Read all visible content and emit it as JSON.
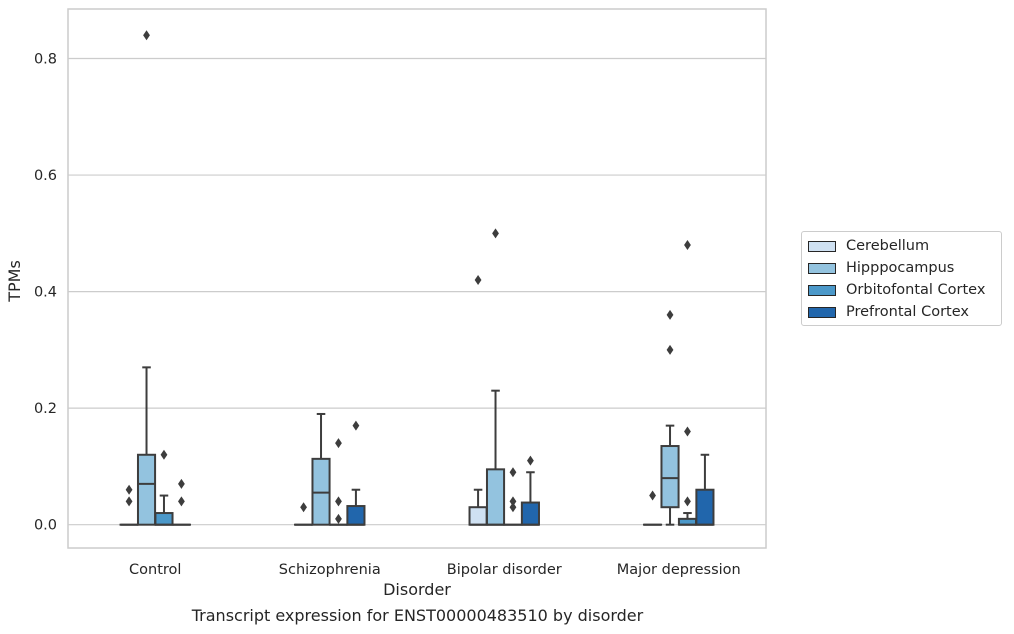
{
  "caption": "Transcript expression for ENST00000483510 by disorder",
  "chart_data": {
    "type": "box",
    "xlabel": "Disorder",
    "ylabel": "TPMs",
    "ylim": [
      -0.04,
      0.885
    ],
    "yticks": [
      0.0,
      0.2,
      0.4,
      0.6,
      0.8
    ],
    "ytick_labels": [
      "0.0",
      "0.2",
      "0.4",
      "0.6",
      "0.8"
    ],
    "grid": "horizontal",
    "legend_placement": "right, outside plot",
    "categories": [
      "Control",
      "Schizophrenia",
      "Bipolar disorder",
      "Major depression"
    ],
    "series": [
      {
        "name": "Cerebellum",
        "color": "#cfe1f2",
        "boxes": [
          {
            "q1": 0,
            "median": 0,
            "q3": 0,
            "whislo": 0,
            "whishi": 0,
            "fliers": [
              0.04,
              0.06
            ]
          },
          {
            "q1": 0,
            "median": 0,
            "q3": 0,
            "whislo": 0,
            "whishi": 0,
            "fliers": [
              0.03
            ]
          },
          {
            "q1": 0,
            "median": 0,
            "q3": 0.03,
            "whislo": 0,
            "whishi": 0.06,
            "fliers": [
              0.42
            ]
          },
          {
            "q1": 0,
            "median": 0,
            "q3": 0,
            "whislo": 0,
            "whishi": 0,
            "fliers": [
              0.05
            ]
          }
        ]
      },
      {
        "name": "Hipppocampus",
        "color": "#93c3df",
        "boxes": [
          {
            "q1": 0,
            "median": 0.07,
            "q3": 0.12,
            "whislo": 0,
            "whishi": 0.27,
            "fliers": [
              0.84
            ]
          },
          {
            "q1": 0,
            "median": 0.055,
            "q3": 0.113,
            "whislo": 0,
            "whishi": 0.19,
            "fliers": []
          },
          {
            "q1": 0,
            "median": 0,
            "q3": 0.095,
            "whislo": 0,
            "whishi": 0.23,
            "fliers": [
              0.5
            ]
          },
          {
            "q1": 0.03,
            "median": 0.08,
            "q3": 0.135,
            "whislo": 0,
            "whishi": 0.17,
            "fliers": [
              0.3,
              0.36
            ]
          }
        ]
      },
      {
        "name": "Orbitofontal Cortex",
        "color": "#4b98c9",
        "boxes": [
          {
            "q1": 0,
            "median": 0,
            "q3": 0.02,
            "whislo": 0,
            "whishi": 0.05,
            "fliers": [
              0.12
            ]
          },
          {
            "q1": 0,
            "median": 0,
            "q3": 0,
            "whislo": 0,
            "whishi": 0,
            "fliers": [
              0.01,
              0.04,
              0.14
            ]
          },
          {
            "q1": 0,
            "median": 0,
            "q3": 0,
            "whislo": 0,
            "whishi": 0,
            "fliers": [
              0.03,
              0.04,
              0.09
            ]
          },
          {
            "q1": 0,
            "median": 0,
            "q3": 0.01,
            "whislo": 0,
            "whishi": 0.02,
            "fliers": [
              0.04,
              0.16,
              0.48
            ]
          }
        ]
      },
      {
        "name": "Prefrontal Cortex",
        "color": "#2166ac",
        "boxes": [
          {
            "q1": 0,
            "median": 0,
            "q3": 0,
            "whislo": 0,
            "whishi": 0,
            "fliers": [
              0.04,
              0.07
            ]
          },
          {
            "q1": 0,
            "median": 0,
            "q3": 0.032,
            "whislo": 0,
            "whishi": 0.06,
            "fliers": [
              0.17
            ]
          },
          {
            "q1": 0,
            "median": 0,
            "q3": 0.038,
            "whislo": 0,
            "whishi": 0.09,
            "fliers": [
              0.11
            ]
          },
          {
            "q1": 0,
            "median": 0,
            "q3": 0.06,
            "whislo": 0,
            "whishi": 0.12,
            "fliers": []
          }
        ]
      }
    ]
  }
}
